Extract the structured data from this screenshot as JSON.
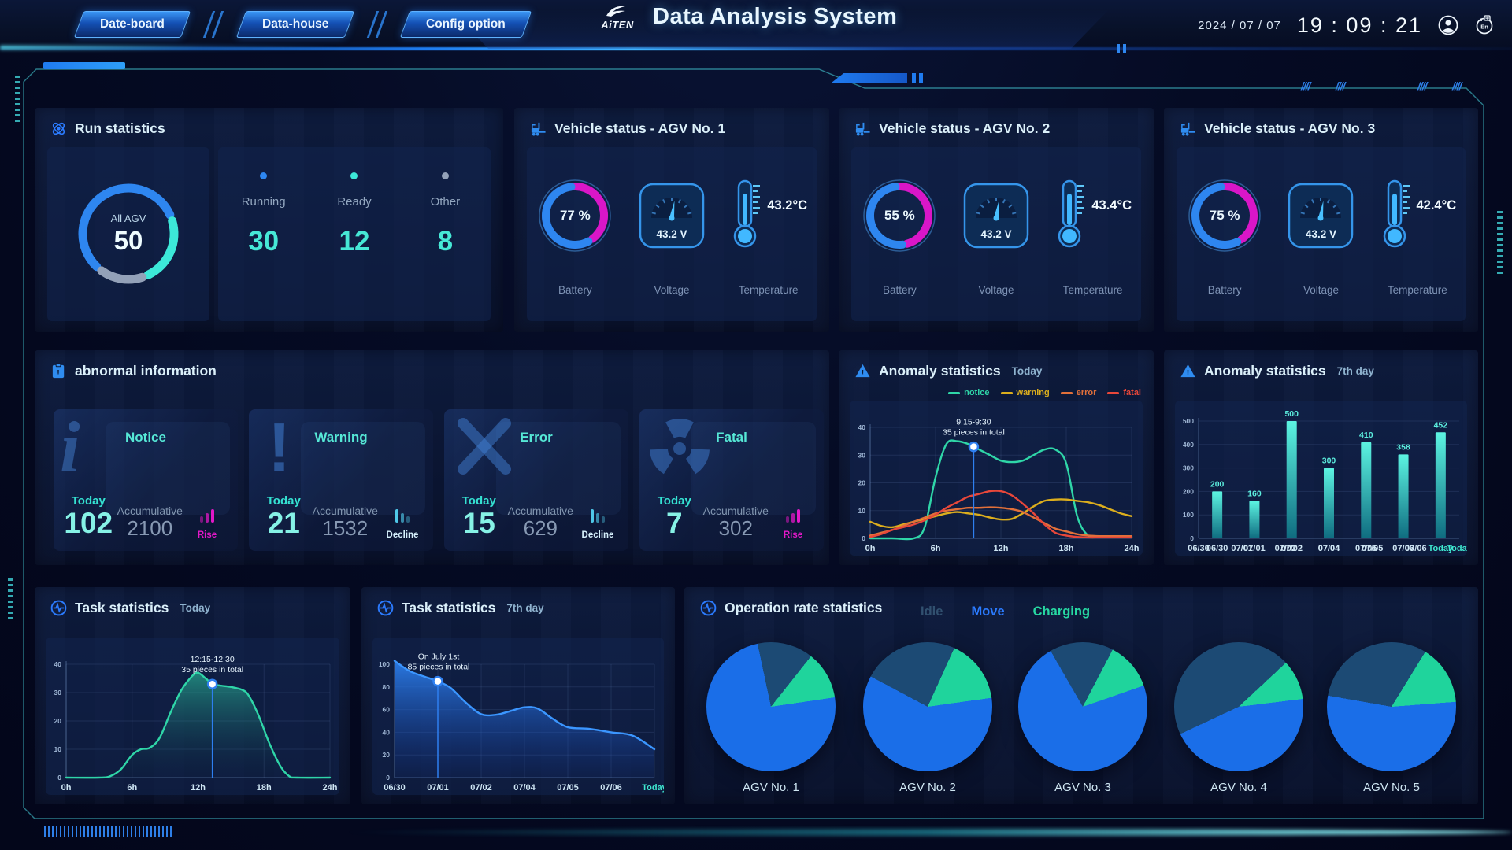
{
  "header": {
    "tabs": [
      {
        "label": "Date-board"
      },
      {
        "label": "Data-house"
      },
      {
        "label": "Config option"
      }
    ],
    "logo_text": "AiTEN",
    "title": "Data Analysis System",
    "date": "2024 / 07 / 07",
    "time": "19 : 09 : 21",
    "language_icon_label": "En"
  },
  "run_statistics": {
    "title": "Run statistics",
    "donut": {
      "label": "All AGV",
      "value": "50"
    },
    "items": [
      {
        "label": "Running",
        "value": "30",
        "color": "#2e86f0"
      },
      {
        "label": "Ready",
        "value": "12",
        "color": "#3ce8d8"
      },
      {
        "label": "Other",
        "value": "8",
        "color": "#93a1b8"
      }
    ]
  },
  "vehicle_labels": {
    "battery": "Battery",
    "voltage": "Voltage",
    "temperature": "Temperature"
  },
  "vehicle_status": [
    {
      "title": "Vehicle status - AGV No. 1",
      "battery_pct": 77,
      "battery": "77 %",
      "voltage": "43.2 V",
      "temperature": "43.2°C"
    },
    {
      "title": "Vehicle status - AGV No. 2",
      "battery_pct": 55,
      "battery": "55 %",
      "voltage": "43.2 V",
      "temperature": "43.4°C"
    },
    {
      "title": "Vehicle status - AGV No. 3",
      "battery_pct": 75,
      "battery": "75 %",
      "voltage": "43.2 V",
      "temperature": "42.4°C"
    }
  ],
  "abnormal": {
    "title": "abnormal information",
    "today_label": "Today",
    "accumulative_label": "Accumulative",
    "cards": [
      {
        "name": "Notice",
        "icon": "info",
        "today": "102",
        "accumulative": "2100",
        "trend": "Rise",
        "trend_dir": "rise",
        "trend_color": "#e318c8"
      },
      {
        "name": "Warning",
        "icon": "exclamation",
        "today": "21",
        "accumulative": "1532",
        "trend": "Decline",
        "trend_dir": "decline",
        "trend_color": "#d6f0fc"
      },
      {
        "name": "Error",
        "icon": "cross",
        "today": "15",
        "accumulative": "629",
        "trend": "Decline",
        "trend_dir": "decline",
        "trend_color": "#d6f0fc"
      },
      {
        "name": "Fatal",
        "icon": "radiation",
        "today": "7",
        "accumulative": "302",
        "trend": "Rise",
        "trend_dir": "rise",
        "trend_color": "#e318c8"
      }
    ]
  },
  "panels": {
    "anomaly_today": {
      "title": "Anomaly statistics",
      "subtitle": "Today"
    },
    "anomaly_7day": {
      "title": "Anomaly statistics",
      "subtitle": "7th day"
    },
    "task_today": {
      "title": "Task statistics",
      "subtitle": "Today"
    },
    "task_7day": {
      "title": "Task statistics",
      "subtitle": "7th day"
    },
    "operation": {
      "title": "Operation rate statistics"
    }
  },
  "operation_legend": [
    {
      "label": "Idle",
      "color": "#31506f"
    },
    {
      "label": "Move",
      "color": "#2b7bff"
    },
    {
      "label": "Charging",
      "color": "#27d8a2"
    }
  ],
  "pie_colors": {
    "move": "#1a6ee8",
    "idle": "#1c4a74",
    "charging": "#1fd49c"
  },
  "agv_pies": [
    {
      "label": "AGV No. 1",
      "start": -12,
      "idle": 14,
      "charging": 12,
      "move": 74
    },
    {
      "label": "AGV No. 2",
      "start": -62,
      "idle": 24,
      "charging": 16,
      "move": 60
    },
    {
      "label": "AGV No. 3",
      "start": -30,
      "idle": 16,
      "charging": 12,
      "move": 72
    },
    {
      "label": "AGV No. 4",
      "start": -115,
      "idle": 45,
      "charging": 10,
      "move": 45
    },
    {
      "label": "AGV No. 5",
      "start": -80,
      "idle": 31,
      "charging": 15,
      "move": 54
    }
  ],
  "chart_data": {
    "anomaly_today": {
      "type": "line",
      "title": "Anomaly statistics Today",
      "grid": true,
      "xlim": [
        0,
        24
      ],
      "ylim": [
        0,
        40
      ],
      "xticks": [
        {
          "v": 0,
          "label": "0h"
        },
        {
          "v": 6,
          "label": "6h"
        },
        {
          "v": 12,
          "label": "12h"
        },
        {
          "v": 18,
          "label": "18h"
        },
        {
          "v": 24,
          "label": "24h"
        }
      ],
      "yticks": [
        0,
        10,
        20,
        30,
        40
      ],
      "legend_position": "top-right",
      "series": [
        {
          "name": "notice",
          "color": "#2fd6a8",
          "points": [
            [
              0,
              0
            ],
            [
              2,
              0
            ],
            [
              4,
              0
            ],
            [
              5,
              4
            ],
            [
              6,
              22
            ],
            [
              7,
              34
            ],
            [
              8,
              35
            ],
            [
              9,
              34
            ],
            [
              10,
              32
            ],
            [
              11,
              30
            ],
            [
              12,
              28
            ],
            [
              13,
              27.5
            ],
            [
              14,
              28
            ],
            [
              15,
              30
            ],
            [
              16,
              32
            ],
            [
              17,
              32
            ],
            [
              18,
              27
            ],
            [
              19,
              8
            ],
            [
              20,
              1
            ],
            [
              21,
              0.5
            ],
            [
              22,
              0.5
            ],
            [
              23,
              0.5
            ],
            [
              24,
              0.5
            ]
          ]
        },
        {
          "name": "warning",
          "color": "#dcae1d",
          "points": [
            [
              0,
              6
            ],
            [
              1,
              4.5
            ],
            [
              2,
              4
            ],
            [
              3,
              5
            ],
            [
              4,
              6
            ],
            [
              5,
              7
            ],
            [
              6,
              8
            ],
            [
              7,
              9
            ],
            [
              8,
              9.5
            ],
            [
              9,
              9
            ],
            [
              10,
              8.5
            ],
            [
              11,
              7.5
            ],
            [
              12,
              6.8
            ],
            [
              13,
              7
            ],
            [
              14,
              9
            ],
            [
              15,
              11.5
            ],
            [
              16,
              13.5
            ],
            [
              17,
              14
            ],
            [
              18,
              14
            ],
            [
              19,
              13.5
            ],
            [
              20,
              13
            ],
            [
              21,
              12
            ],
            [
              22,
              10.5
            ],
            [
              23,
              9
            ],
            [
              24,
              8
            ]
          ]
        },
        {
          "name": "error",
          "color": "#e2703a",
          "points": [
            [
              0,
              1
            ],
            [
              1,
              2
            ],
            [
              2,
              3
            ],
            [
              3,
              4.5
            ],
            [
              4,
              6
            ],
            [
              5,
              7.5
            ],
            [
              6,
              9
            ],
            [
              7,
              10
            ],
            [
              8,
              10.5
            ],
            [
              9,
              11
            ],
            [
              10,
              11
            ],
            [
              11,
              11.2
            ],
            [
              12,
              11
            ],
            [
              13,
              10.5
            ],
            [
              14,
              9.5
            ],
            [
              15,
              7.5
            ],
            [
              16,
              5.5
            ],
            [
              17,
              3.5
            ],
            [
              18,
              2.5
            ],
            [
              19,
              1.5
            ],
            [
              20,
              1
            ],
            [
              21,
              0.8
            ],
            [
              22,
              0.8
            ],
            [
              23,
              0.8
            ],
            [
              24,
              0.8
            ]
          ]
        },
        {
          "name": "fatal",
          "color": "#e8473a",
          "points": [
            [
              0,
              0.5
            ],
            [
              1,
              1.5
            ],
            [
              2,
              3
            ],
            [
              3,
              4
            ],
            [
              4,
              5
            ],
            [
              5,
              6.5
            ],
            [
              6,
              8.5
            ],
            [
              7,
              11
            ],
            [
              8,
              13
            ],
            [
              9,
              15
            ],
            [
              10,
              16
            ],
            [
              11,
              17
            ],
            [
              12,
              17
            ],
            [
              13,
              15.5
            ],
            [
              14,
              12.5
            ],
            [
              15,
              9
            ],
            [
              16,
              5
            ],
            [
              17,
              2
            ],
            [
              18,
              1
            ],
            [
              19,
              0.5
            ],
            [
              20,
              0.3
            ],
            [
              21,
              0.3
            ],
            [
              22,
              0.3
            ],
            [
              23,
              0.3
            ],
            [
              24,
              0.3
            ]
          ]
        }
      ],
      "annotation": {
        "x": 9.5,
        "y": 33,
        "lines": [
          "9:15-9:30",
          "35 pieces in total"
        ]
      }
    },
    "anomaly_7day": {
      "type": "bar",
      "title": "Anomaly statistics 7th day",
      "grid": true,
      "categories": [
        "06/30",
        "07/01",
        "07/02",
        "07/04",
        "07/05",
        "07/06",
        "Today"
      ],
      "values": [
        200,
        160,
        500,
        300,
        410,
        358,
        452
      ],
      "ylim": [
        0,
        500
      ],
      "yticks": [
        0,
        100,
        200,
        300,
        400,
        500
      ],
      "bar_colors": [
        "#5cf4e2",
        "#0f6c80"
      ],
      "last_tick_color": "#3fe8d0"
    },
    "task_today": {
      "type": "area",
      "title": "Task statistics Today",
      "grid": true,
      "xlim": [
        0,
        24
      ],
      "ylim": [
        0,
        40
      ],
      "xticks": [
        {
          "v": 0,
          "label": "0h"
        },
        {
          "v": 6,
          "label": "6h"
        },
        {
          "v": 12,
          "label": "12h"
        },
        {
          "v": 18,
          "label": "18h"
        },
        {
          "v": 24,
          "label": "24h"
        }
      ],
      "yticks": [
        0,
        10,
        20,
        30,
        40
      ],
      "series": [
        {
          "name": "tasks",
          "color": "#2fd6a8",
          "fill": [
            "rgba(47,214,168,0.55)",
            "rgba(16,60,80,0.04)"
          ],
          "points": [
            [
              0,
              0
            ],
            [
              3,
              0
            ],
            [
              4,
              0.5
            ],
            [
              5,
              3
            ],
            [
              6,
              8
            ],
            [
              6.8,
              10
            ],
            [
              7.6,
              10.5
            ],
            [
              8.5,
              14
            ],
            [
              9.5,
              23
            ],
            [
              10.5,
              31
            ],
            [
              11.5,
              36
            ],
            [
              12,
              37
            ],
            [
              12.7,
              35
            ],
            [
              13.3,
              33
            ],
            [
              14,
              32.5
            ],
            [
              15,
              32
            ],
            [
              16,
              31
            ],
            [
              16.6,
              29
            ],
            [
              17.5,
              22
            ],
            [
              18.5,
              12
            ],
            [
              19.5,
              4
            ],
            [
              20.3,
              0.5
            ],
            [
              21,
              0
            ],
            [
              24,
              0
            ]
          ]
        }
      ],
      "annotation": {
        "x": 13.3,
        "y": 33,
        "lines": [
          "12:15-12:30",
          "35 pieces in total"
        ]
      }
    },
    "task_7day": {
      "type": "area",
      "title": "Task statistics 7th day",
      "grid": true,
      "categories": [
        "06/30",
        "07/01",
        "07/02",
        "07/04",
        "07/05",
        "07/06",
        "Today"
      ],
      "ylim": [
        0,
        100
      ],
      "yticks": [
        0,
        20,
        40,
        60,
        80,
        100
      ],
      "series": [
        {
          "name": "tasks",
          "color": "#3b96ff",
          "fill": [
            "rgba(46,134,248,0.88)",
            "rgba(20,60,160,0.10)"
          ],
          "points": [
            [
              0,
              103
            ],
            [
              0.35,
              94
            ],
            [
              0.7,
              89
            ],
            [
              1,
              85
            ],
            [
              1.3,
              79
            ],
            [
              1.65,
              66
            ],
            [
              2,
              56
            ],
            [
              2.35,
              55.5
            ],
            [
              2.7,
              59
            ],
            [
              3,
              62
            ],
            [
              3.3,
              61
            ],
            [
              3.65,
              52
            ],
            [
              4,
              44.5
            ],
            [
              4.5,
              43
            ],
            [
              5,
              40
            ],
            [
              5.5,
              37
            ],
            [
              6,
              25
            ]
          ]
        }
      ],
      "annotation": {
        "x": 1,
        "y": 85,
        "lines": [
          "On July 1st",
          "85 pieces in total"
        ]
      },
      "last_tick_color": "#3fe8d0"
    }
  }
}
